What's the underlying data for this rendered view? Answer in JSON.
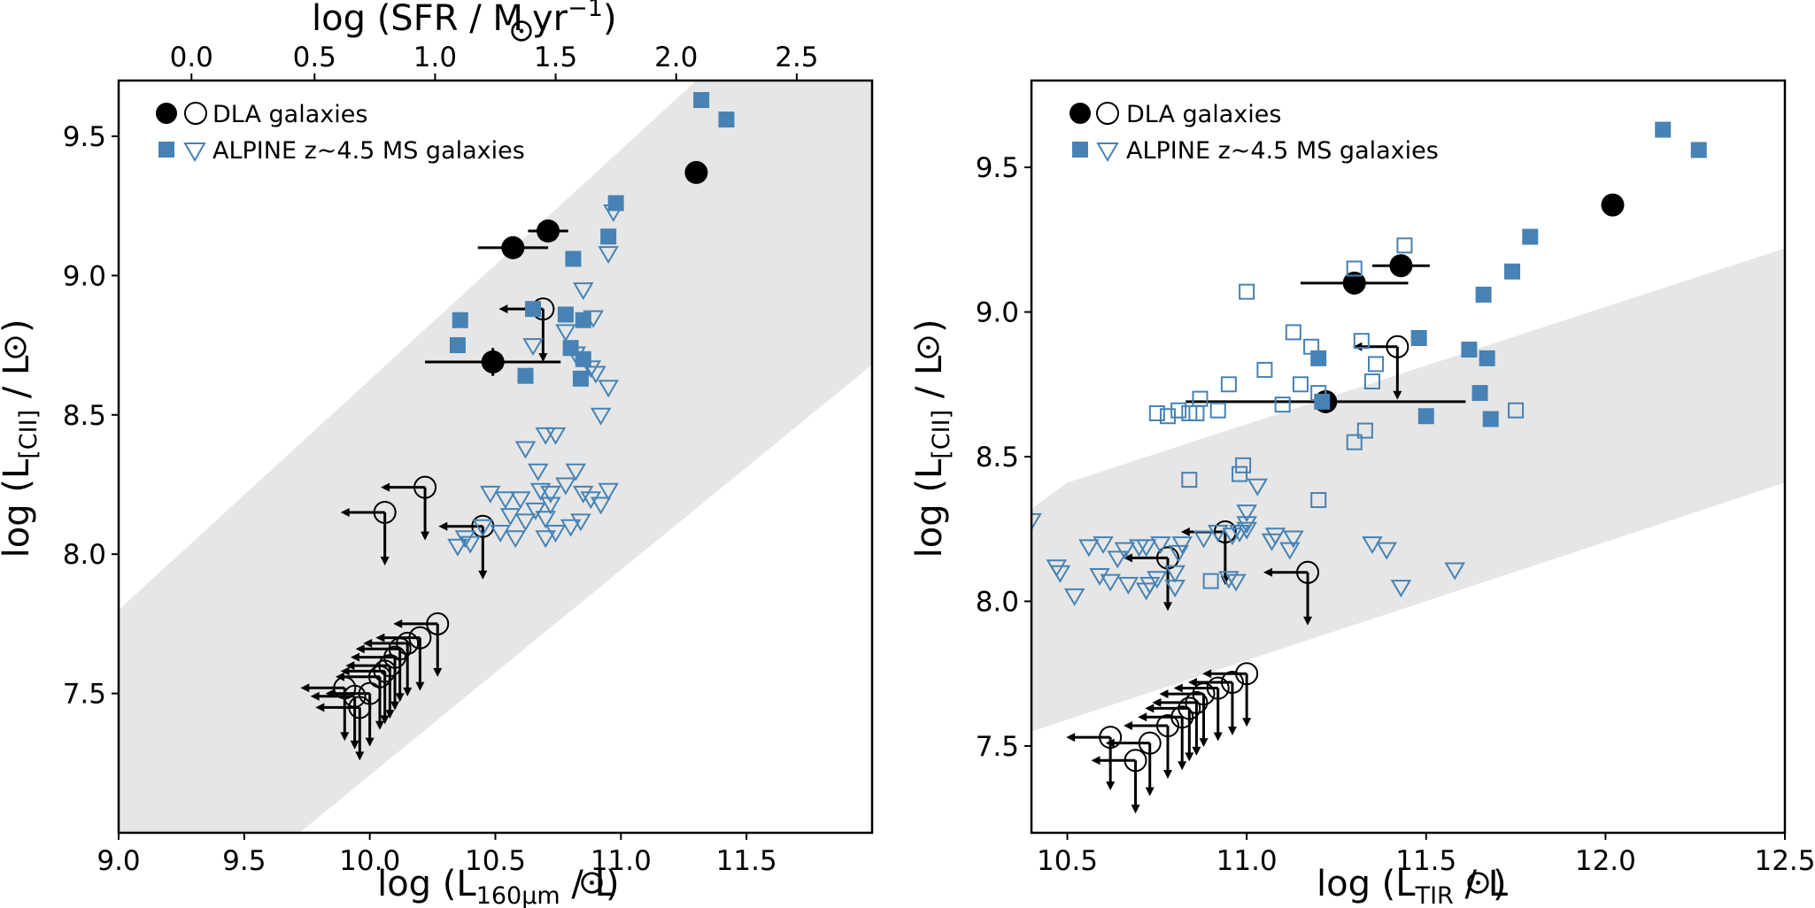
{
  "colors": {
    "alpine": "#4682b4",
    "dla": "#000000",
    "band": "#e6e6e6"
  },
  "chart_data": [
    {
      "type": "scatter",
      "panel": "left",
      "xlabel_main": "log (L",
      "xlabel_sub": "160μm",
      "xlabel_end": " / L",
      "ylabel_main": "log (L",
      "ylabel_sub": "[CII]",
      "ylabel_end": " / L",
      "top_xlabel_main": "log (SFR / M",
      "top_xlabel_mid": " yr",
      "top_xlabel_sup": "−1",
      "top_xlabel_end": ")",
      "xlim": [
        9.0,
        12.0
      ],
      "ylim": [
        7.0,
        9.7
      ],
      "xticks": [
        9.0,
        9.5,
        10.0,
        10.5,
        11.0,
        11.5
      ],
      "xtick_labels": [
        "9.0",
        "9.5",
        "10.0",
        "10.5",
        "11.0",
        "11.5"
      ],
      "yticks": [
        7.5,
        8.0,
        8.5,
        9.0,
        9.5
      ],
      "ytick_labels": [
        "7.5",
        "8.0",
        "8.5",
        "9.0",
        "9.5"
      ],
      "top_xticks": [
        9.0,
        9.5,
        10.0,
        10.5,
        11.0,
        11.5,
        12.0
      ],
      "top_xtick_labels": [
        "0.0",
        "0.5",
        "1.0",
        "1.5",
        "2.0",
        "2.5"
      ],
      "top_xtick_positions": [
        9.29,
        9.78,
        10.26,
        10.74,
        11.22,
        11.7
      ],
      "band": {
        "lower": [
          [
            9.72,
            7.0
          ],
          [
            12.0,
            8.68
          ]
        ],
        "upper": [
          [
            9.0,
            7.8
          ],
          [
            11.3,
            9.7
          ]
        ]
      },
      "legend": {
        "dla_label": "DLA galaxies",
        "alpine_label": "ALPINE z~4.5 MS galaxies"
      },
      "series": [
        {
          "name": "DLA galaxies (detections)",
          "marker": "filled-circle",
          "points": [
            [
              11.3,
              9.37,
              0,
              0
            ],
            [
              10.71,
              9.16,
              0.08,
              0
            ],
            [
              10.57,
              9.1,
              0.14,
              0
            ],
            [
              10.49,
              8.69,
              0.27,
              0.05
            ]
          ]
        },
        {
          "name": "DLA galaxies (upper limits)",
          "marker": "open-circle",
          "points": [
            [
              10.69,
              8.88
            ],
            [
              10.22,
              8.24
            ],
            [
              10.06,
              8.15
            ],
            [
              10.45,
              8.1
            ],
            [
              10.27,
              7.75
            ],
            [
              10.2,
              7.7
            ],
            [
              10.15,
              7.68
            ],
            [
              10.12,
              7.66
            ],
            [
              10.1,
              7.63
            ],
            [
              10.08,
              7.6
            ],
            [
              10.06,
              7.58
            ],
            [
              10.04,
              7.56
            ],
            [
              9.9,
              7.52
            ],
            [
              9.94,
              7.49
            ],
            [
              10.0,
              7.5
            ],
            [
              9.96,
              7.45
            ]
          ]
        },
        {
          "name": "ALPINE z~4.5 MS galaxies (detections)",
          "marker": "filled-square",
          "points": [
            [
              11.32,
              9.63
            ],
            [
              11.42,
              9.56
            ],
            [
              10.98,
              9.26
            ],
            [
              10.95,
              9.14
            ],
            [
              10.81,
              9.06
            ],
            [
              10.36,
              8.84
            ],
            [
              10.35,
              8.75
            ],
            [
              10.65,
              8.88
            ],
            [
              10.78,
              8.86
            ],
            [
              10.85,
              8.84
            ],
            [
              10.8,
              8.74
            ],
            [
              10.85,
              8.7
            ],
            [
              10.62,
              8.64
            ],
            [
              10.84,
              8.63
            ]
          ]
        },
        {
          "name": "ALPINE z~4.5 MS galaxies (upper limits)",
          "marker": "open-triangle",
          "points": [
            [
              10.97,
              9.23
            ],
            [
              10.95,
              9.08
            ],
            [
              10.85,
              8.95
            ],
            [
              10.89,
              8.85
            ],
            [
              10.95,
              8.6
            ],
            [
              10.88,
              8.67
            ],
            [
              10.82,
              8.72
            ],
            [
              10.78,
              8.8
            ],
            [
              10.65,
              8.75
            ],
            [
              10.9,
              8.65
            ],
            [
              10.92,
              8.5
            ],
            [
              10.7,
              8.43
            ],
            [
              10.74,
              8.43
            ],
            [
              10.62,
              8.38
            ],
            [
              10.67,
              8.3
            ],
            [
              10.78,
              8.25
            ],
            [
              10.82,
              8.3
            ],
            [
              10.85,
              8.22
            ],
            [
              10.88,
              8.2
            ],
            [
              10.92,
              8.18
            ],
            [
              10.95,
              8.23
            ],
            [
              10.72,
              8.22
            ],
            [
              10.72,
              8.18
            ],
            [
              10.68,
              8.23
            ],
            [
              10.6,
              8.2
            ],
            [
              10.66,
              8.16
            ],
            [
              10.62,
              8.12
            ],
            [
              10.56,
              8.14
            ],
            [
              10.54,
              8.2
            ],
            [
              10.48,
              8.22
            ],
            [
              10.52,
              8.08
            ],
            [
              10.45,
              8.1
            ],
            [
              10.38,
              8.06
            ],
            [
              10.4,
              8.04
            ],
            [
              10.35,
              8.03
            ],
            [
              10.58,
              8.06
            ],
            [
              10.7,
              8.06
            ],
            [
              10.8,
              8.1
            ],
            [
              10.84,
              8.12
            ],
            [
              10.74,
              8.08
            ],
            [
              10.7,
              8.13
            ]
          ]
        }
      ]
    },
    {
      "type": "scatter",
      "panel": "right",
      "xlabel_main": "log (L",
      "xlabel_sub": "TIR",
      "xlabel_end": " / L",
      "ylabel_main": "log (L",
      "ylabel_sub": "[CII]",
      "ylabel_end": " / L",
      "xlim": [
        10.4,
        12.5
      ],
      "ylim": [
        7.2,
        9.8
      ],
      "xticks": [
        10.5,
        11.0,
        11.5,
        12.0,
        12.5
      ],
      "xtick_labels": [
        "10.5",
        "11.0",
        "11.5",
        "12.0",
        "12.5"
      ],
      "yticks": [
        7.5,
        8.0,
        8.5,
        9.0,
        9.5
      ],
      "ytick_labels": [
        "7.5",
        "8.0",
        "8.5",
        "9.0",
        "9.5"
      ],
      "band": {
        "lower": [
          [
            10.4,
            7.55
          ],
          [
            12.5,
            8.41
          ]
        ],
        "upper": [
          [
            10.4,
            8.32
          ],
          [
            10.5,
            8.41
          ],
          [
            12.5,
            9.22
          ]
        ]
      },
      "legend": {
        "dla_label": "DLA galaxies",
        "alpine_label": "ALPINE z~4.5 MS galaxies"
      },
      "series": [
        {
          "name": "DLA galaxies (detections)",
          "marker": "filled-circle",
          "points": [
            [
              12.02,
              9.37,
              0,
              0
            ],
            [
              11.43,
              9.16,
              0.08,
              0
            ],
            [
              11.3,
              9.1,
              0.15,
              0.03
            ],
            [
              11.22,
              8.69,
              0.39,
              0.04
            ]
          ]
        },
        {
          "name": "DLA galaxies (upper limits)",
          "marker": "open-circle",
          "points": [
            [
              11.42,
              8.88
            ],
            [
              10.94,
              8.24
            ],
            [
              10.78,
              8.15
            ],
            [
              11.17,
              8.1
            ],
            [
              11.0,
              7.75
            ],
            [
              10.96,
              7.72
            ],
            [
              10.92,
              7.7
            ],
            [
              10.88,
              7.68
            ],
            [
              10.86,
              7.65
            ],
            [
              10.84,
              7.63
            ],
            [
              10.82,
              7.6
            ],
            [
              10.78,
              7.57
            ],
            [
              10.62,
              7.53
            ],
            [
              10.73,
              7.51
            ],
            [
              10.69,
              7.45
            ]
          ]
        },
        {
          "name": "ALPINE z~4.5 MS galaxies (detections)",
          "marker": "filled-square",
          "points": [
            [
              12.16,
              9.63
            ],
            [
              12.26,
              9.56
            ],
            [
              11.79,
              9.26
            ],
            [
              11.74,
              9.14
            ],
            [
              11.66,
              9.06
            ],
            [
              11.48,
              8.91
            ],
            [
              11.62,
              8.87
            ],
            [
              11.67,
              8.84
            ],
            [
              11.2,
              8.84
            ],
            [
              11.65,
              8.72
            ],
            [
              11.5,
              8.64
            ],
            [
              11.68,
              8.63
            ],
            [
              11.21,
              8.69
            ]
          ]
        },
        {
          "name": "ALPINE z~4.5 MS galaxies (upper limits, open squares)",
          "marker": "open-square",
          "points": [
            [
              11.44,
              9.23
            ],
            [
              11.3,
              9.15
            ],
            [
              11.0,
              9.07
            ],
            [
              11.13,
              8.93
            ],
            [
              11.18,
              8.88
            ],
            [
              11.32,
              8.9
            ],
            [
              11.05,
              8.8
            ],
            [
              11.15,
              8.75
            ],
            [
              11.2,
              8.72
            ],
            [
              10.95,
              8.75
            ],
            [
              11.1,
              8.68
            ],
            [
              11.35,
              8.76
            ],
            [
              11.36,
              8.82
            ],
            [
              10.87,
              8.7
            ],
            [
              10.92,
              8.66
            ],
            [
              10.81,
              8.66
            ],
            [
              10.84,
              8.65
            ],
            [
              10.86,
              8.65
            ],
            [
              10.75,
              8.65
            ],
            [
              10.78,
              8.64
            ],
            [
              11.33,
              8.59
            ],
            [
              11.3,
              8.55
            ],
            [
              11.75,
              8.66
            ],
            [
              11.2,
              8.35
            ],
            [
              10.99,
              8.47
            ],
            [
              10.98,
              8.44
            ],
            [
              10.84,
              8.42
            ],
            [
              10.9,
              8.07
            ]
          ]
        },
        {
          "name": "ALPINE z~4.5 MS galaxies (upper limits, triangles)",
          "marker": "open-triangle",
          "points": [
            [
              11.03,
              8.4
            ],
            [
              11.0,
              8.31
            ],
            [
              11.0,
              8.27
            ],
            [
              10.96,
              8.23
            ],
            [
              10.98,
              8.24
            ],
            [
              10.92,
              8.24
            ],
            [
              11.07,
              8.21
            ],
            [
              11.08,
              8.23
            ],
            [
              10.88,
              8.22
            ],
            [
              10.82,
              8.2
            ],
            [
              10.81,
              8.17
            ],
            [
              10.76,
              8.2
            ],
            [
              10.72,
              8.19
            ],
            [
              10.7,
              8.19
            ],
            [
              10.66,
              8.18
            ],
            [
              10.64,
              8.15
            ],
            [
              10.6,
              8.2
            ],
            [
              10.56,
              8.19
            ],
            [
              10.47,
              8.12
            ],
            [
              10.48,
              8.1
            ],
            [
              10.52,
              8.02
            ],
            [
              10.59,
              8.09
            ],
            [
              10.62,
              8.07
            ],
            [
              10.67,
              8.06
            ],
            [
              10.73,
              8.06
            ],
            [
              10.75,
              8.08
            ],
            [
              10.72,
              8.04
            ],
            [
              10.8,
              8.1
            ],
            [
              10.8,
              8.05
            ],
            [
              10.95,
              8.08
            ],
            [
              10.97,
              8.07
            ],
            [
              10.4,
              8.28
            ],
            [
              11.35,
              8.2
            ],
            [
              11.39,
              8.18
            ],
            [
              11.43,
              8.05
            ],
            [
              11.58,
              8.11
            ],
            [
              11.13,
              8.22
            ],
            [
              11.12,
              8.18
            ],
            [
              11.0,
              8.25
            ]
          ]
        }
      ]
    }
  ]
}
